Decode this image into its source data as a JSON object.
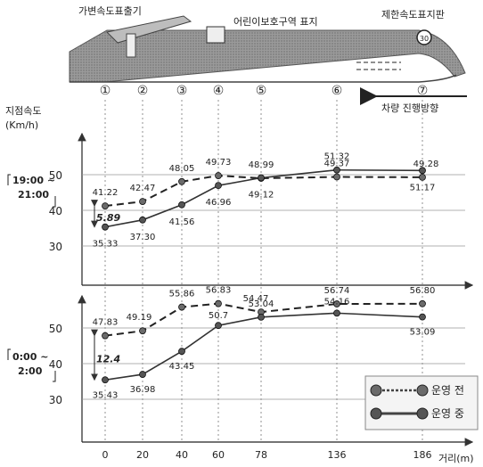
{
  "road": {
    "label_variable_sign": "가변속도표출기",
    "label_school_zone_sign": "어린이보호구역 표지",
    "label_speed_limit_sign": "제한속도표지판",
    "speed_limit_value": "30",
    "markers": [
      "①",
      "②",
      "③",
      "④",
      "⑤",
      "⑥",
      "⑦"
    ],
    "direction_label": "차량 진행방향"
  },
  "axes": {
    "ylabel_line1": "지점속도",
    "ylabel_line2": "(Km/h)",
    "xlabel": "거리(m)"
  },
  "legend": {
    "before": "운영 전",
    "during": "운영 중",
    "color_before": "#6b6b6b",
    "color_during": "#555555"
  },
  "chart_data": [
    {
      "type": "line",
      "period_line1": "19:00 ~",
      "period_line2": "21:00",
      "x": [
        0,
        20,
        40,
        60,
        78,
        136,
        186
      ],
      "x_tick_labels": [
        "0",
        "20",
        "40",
        "60",
        "78",
        "136",
        "186"
      ],
      "ylim": [
        20,
        60
      ],
      "yticks": [
        30,
        40,
        50
      ],
      "series": [
        {
          "key": "before",
          "values": [
            41.22,
            42.47,
            48.05,
            49.73,
            48.99,
            49.37,
            49.28
          ],
          "labels": [
            "41.22",
            "42.47",
            "48.05",
            "49.73",
            "48.99",
            "49.37",
            "49.28"
          ]
        },
        {
          "key": "during",
          "values": [
            35.33,
            37.3,
            41.56,
            46.96,
            49.12,
            51.32,
            51.17
          ],
          "labels": [
            "35.33",
            "37.30",
            "41.56",
            "46.96",
            "49.12",
            "51.32",
            "51.17"
          ]
        }
      ],
      "difference_label": "5.89"
    },
    {
      "type": "line",
      "period_line1": "0:00 ~",
      "period_line2": "2:00",
      "x": [
        0,
        20,
        40,
        60,
        78,
        136,
        186
      ],
      "x_tick_labels": [
        "0",
        "20",
        "40",
        "60",
        "78",
        "136",
        "186"
      ],
      "ylim": [
        20,
        60
      ],
      "yticks": [
        30,
        40,
        50
      ],
      "series": [
        {
          "key": "before",
          "values": [
            47.83,
            49.19,
            55.86,
            56.83,
            54.47,
            56.74,
            56.8
          ],
          "labels": [
            "47.83",
            "49.19",
            "55.86",
            "56.83",
            "54.47",
            "56.74",
            "56.80"
          ]
        },
        {
          "key": "during",
          "values": [
            35.43,
            36.98,
            43.45,
            50.7,
            53.04,
            54.16,
            53.09
          ],
          "labels": [
            "35.43",
            "36.98",
            "43.45",
            "50.7",
            "53.04",
            "54.16",
            "53.09"
          ]
        }
      ],
      "difference_label": "12.4"
    }
  ]
}
